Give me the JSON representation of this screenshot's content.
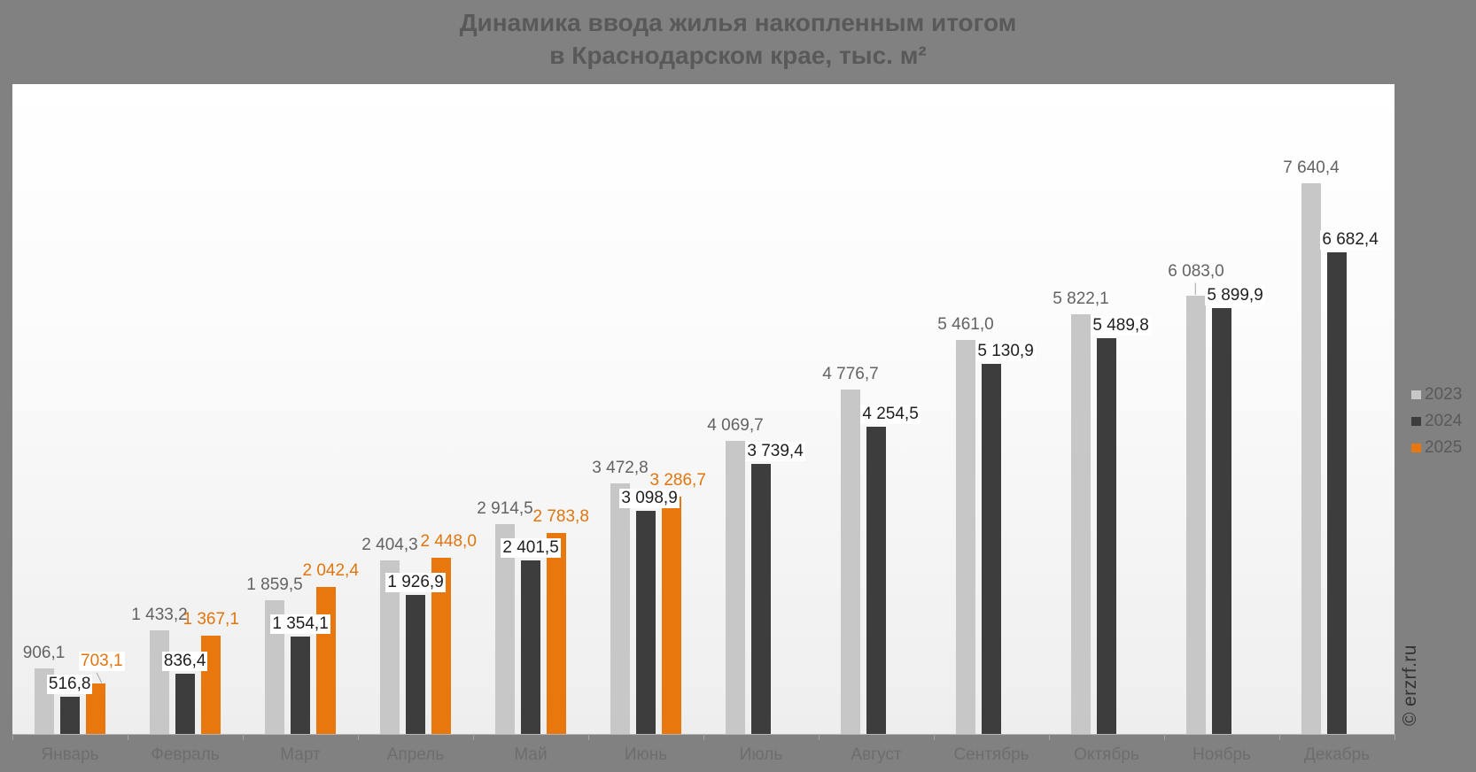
{
  "chart_data": {
    "type": "bar",
    "title": "Динамика ввода жилья накопленным итогом в Краснодарском крае, тыс. м²",
    "title_lines": [
      "Динамика ввода жилья накопленным итогом",
      "в Краснодарском крае, тыс. м²"
    ],
    "categories": [
      "Январь",
      "Февраль",
      "Март",
      "Апрель",
      "Май",
      "Июнь",
      "Июль",
      "Август",
      "Сентябрь",
      "Октябрь",
      "Ноябрь",
      "Декабрь"
    ],
    "series": [
      {
        "name": "2023",
        "color": "#c7c7c7",
        "label_color": "#636363",
        "label_boxed": false,
        "values": [
          906.1,
          1433.2,
          1859.5,
          2404.3,
          2914.5,
          3472.8,
          4069.7,
          4776.7,
          5461.0,
          5822.1,
          6083.0,
          7640.4
        ],
        "labels": [
          "906,1",
          "1 433,2",
          "1 859,5",
          "2 404,3",
          "2 914,5",
          "3 472,8",
          "4 069,7",
          "4 776,7",
          "5 461,0",
          "5 822,1",
          "6 083,0",
          "7 640,4"
        ]
      },
      {
        "name": "2024",
        "color": "#3d3d3d",
        "label_color": "#1f1f1f",
        "label_boxed": true,
        "values": [
          516.8,
          836.4,
          1354.1,
          1926.9,
          2401.5,
          3098.9,
          3739.4,
          4254.5,
          5130.9,
          5489.8,
          5899.9,
          6682.4
        ],
        "labels": [
          "516,8",
          "836,4",
          "1 354,1",
          "1 926,9",
          "2 401,5",
          "3 098,9",
          "3 739,4",
          "4 254,5",
          "5 130,9",
          "5 489,8",
          "5 899,9",
          "6 682,4"
        ]
      },
      {
        "name": "2025",
        "color": "#e8770e",
        "label_color": "#e2750e",
        "label_boxed": false,
        "values": [
          703.1,
          1367.1,
          2042.4,
          2448.0,
          2783.8,
          3286.7
        ],
        "labels": [
          "703,1",
          "1 367,1",
          "2 042,4",
          "2 448,0",
          "2 783,8",
          "3 286,7"
        ]
      }
    ],
    "ylim": [
      0,
      9012
    ],
    "grid": false,
    "legend_position": "right",
    "watermark": "© erzrf.ru",
    "layout_hints": {
      "label_overrides": {
        "2023": {
          "10": {
            "dy": -10,
            "leader": "vert"
          }
        },
        "2024": {
          "5": {
            "dx": 4
          },
          "6": {
            "dx": 16
          },
          "7": {
            "dx": 16
          },
          "8": {
            "dx": 16
          },
          "9": {
            "dx": 16
          },
          "10": {
            "dx": 15
          },
          "11": {
            "dx": 15
          }
        },
        "2025": {
          "0": {
            "dx": 7,
            "dy": -7,
            "leader": "diag",
            "boxed": true
          },
          "1": {
            "dx": 0
          },
          "2": {
            "dx": 5
          },
          "3": {
            "dx": 8
          },
          "4": {
            "dx": 5
          },
          "5": {
            "dx": 7
          }
        }
      },
      "series_label_dx": {
        "2023": 0,
        "2024": 0,
        "2025": 6
      },
      "series_label_gap": {
        "2023": 6,
        "2024": 3,
        "2025": 7
      }
    }
  }
}
